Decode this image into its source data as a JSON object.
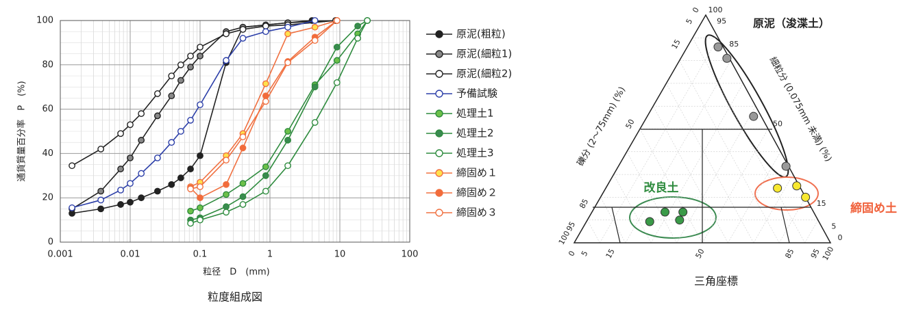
{
  "chart_data": [
    {
      "type": "line",
      "title": "粒度組成図",
      "xlabel": "粒径　D　(mm)",
      "ylabel": "通貨質量百分率　P　(%)",
      "xscale": "log",
      "grid": true,
      "minor_grid": true,
      "xlim": [
        0.001,
        100
      ],
      "xticks": [
        0.001,
        0.01,
        0.1,
        1,
        10,
        100
      ],
      "ylim": [
        0,
        100
      ],
      "yticks": [
        0,
        20,
        40,
        60,
        80,
        100
      ],
      "legend": "right",
      "series": [
        {
          "name": "原泥(粗粒)",
          "color": "#222222",
          "marker_fill": "#222222",
          "x": [
            0.00147,
            0.0038,
            0.0073,
            0.01,
            0.0144,
            0.0246,
            0.039,
            0.053,
            0.073,
            0.1,
            0.236,
            0.41,
            0.87,
            1.8,
            4
          ],
          "values": [
            13,
            15,
            17,
            18,
            20,
            23,
            26,
            29,
            33,
            39,
            81,
            97,
            98,
            99,
            100
          ]
        },
        {
          "name": "原泥(細粒1)",
          "color": "#222222",
          "marker_fill": "#888888",
          "x": [
            0.00147,
            0.0038,
            0.0073,
            0.01,
            0.0144,
            0.0246,
            0.039,
            0.053,
            0.073,
            0.1,
            0.236,
            0.41,
            0.87,
            1.8,
            8.7
          ],
          "values": [
            15,
            23,
            33,
            38,
            46,
            57,
            66,
            73,
            79,
            84,
            95,
            97,
            98,
            99,
            100
          ]
        },
        {
          "name": "原泥(細粒2)",
          "color": "#222222",
          "marker_fill": "#ffffff",
          "x": [
            0.00147,
            0.0038,
            0.0073,
            0.01,
            0.0144,
            0.0246,
            0.039,
            0.053,
            0.073,
            0.1,
            0.236,
            0.41,
            0.87,
            1.8,
            8.7
          ],
          "values": [
            34.5,
            42,
            49,
            53,
            58,
            67,
            75,
            80,
            84,
            88,
            94,
            96,
            97.5,
            98,
            100
          ]
        },
        {
          "name": "予備試験",
          "color": "#2b3ea8",
          "marker_fill": "#ffffff",
          "x": [
            0.00147,
            0.0038,
            0.0073,
            0.01,
            0.0144,
            0.0246,
            0.039,
            0.053,
            0.073,
            0.1,
            0.236,
            0.41,
            0.87,
            1.8,
            4.4
          ],
          "values": [
            15.5,
            19,
            23.5,
            26.5,
            31,
            38,
            45,
            50,
            55,
            62,
            82,
            92,
            95,
            97,
            100
          ]
        },
        {
          "name": "処理土1",
          "color": "#2e8b3e",
          "marker_fill": "#6cc04a",
          "x": [
            0.073,
            0.1,
            0.236,
            0.41,
            0.87,
            1.8,
            4.4,
            9.1,
            18,
            24.7
          ],
          "values": [
            14,
            15.5,
            21.5,
            26.5,
            34,
            50,
            71,
            82,
            94,
            100
          ]
        },
        {
          "name": "処理土2",
          "color": "#2e8b3e",
          "marker_fill": "#3a8a50",
          "x": [
            0.073,
            0.1,
            0.236,
            0.41,
            0.87,
            1.8,
            4.4,
            9.1,
            18,
            24.7
          ],
          "values": [
            10,
            11,
            16,
            20.5,
            30,
            46,
            70,
            88,
            97.5,
            100
          ]
        },
        {
          "name": "処理土3",
          "color": "#2e8b3e",
          "marker_fill": "#ffffff",
          "x": [
            0.073,
            0.1,
            0.236,
            0.41,
            0.87,
            1.8,
            4.4,
            9.1,
            18,
            24.7
          ],
          "values": [
            8.5,
            10,
            13.5,
            17,
            23,
            34.5,
            54,
            72,
            92,
            100
          ]
        },
        {
          "name": "締固め１",
          "color": "#f07040",
          "marker_fill": "#ffe14d",
          "x": [
            0.073,
            0.1,
            0.236,
            0.41,
            0.87,
            1.8,
            4.4,
            9.1
          ],
          "values": [
            25,
            27,
            39,
            49,
            71.5,
            94,
            97,
            100
          ]
        },
        {
          "name": "締固め２",
          "color": "#f07040",
          "marker_fill": "#f26b3a",
          "x": [
            0.073,
            0.1,
            0.236,
            0.41,
            0.87,
            1.8,
            4.4,
            9.1
          ],
          "values": [
            24.5,
            20,
            26,
            42.5,
            66,
            81.5,
            92.5,
            100
          ]
        },
        {
          "name": "締固め３",
          "color": "#f07040",
          "marker_fill": "#ffffff",
          "x": [
            0.073,
            0.1,
            0.236,
            0.41,
            0.87,
            1.8,
            4.4,
            9.1
          ],
          "values": [
            24,
            25,
            37,
            47.5,
            63.5,
            81,
            91,
            100
          ]
        }
      ]
    },
    {
      "type": "ternary",
      "title": "三角座標",
      "top_label": "原泥（浚渫土）",
      "right_axis_label": "細粒分 (0.075mm 未満) (%)",
      "left_axis_label": "礫分 (2～75mm) (%)",
      "ticks": [
        0,
        5,
        15,
        50,
        85,
        95,
        100
      ],
      "groups": [
        {
          "color": "#999999",
          "fines": [
            86,
            81,
            55.5,
            33.6
          ],
          "gravel": [
            2,
            1,
            3,
            1
          ]
        },
        {
          "name": "締固め土",
          "color": "#f8e830",
          "fines": [
            24,
            25,
            20
          ],
          "gravel": [
            9,
            1,
            0
          ]
        },
        {
          "name": "改良土",
          "color": "#3a9a48",
          "fines": [
            9.3,
            13.5,
            10,
            13.5
          ],
          "gravel": [
            66,
            58,
            54,
            51
          ]
        }
      ]
    }
  ]
}
